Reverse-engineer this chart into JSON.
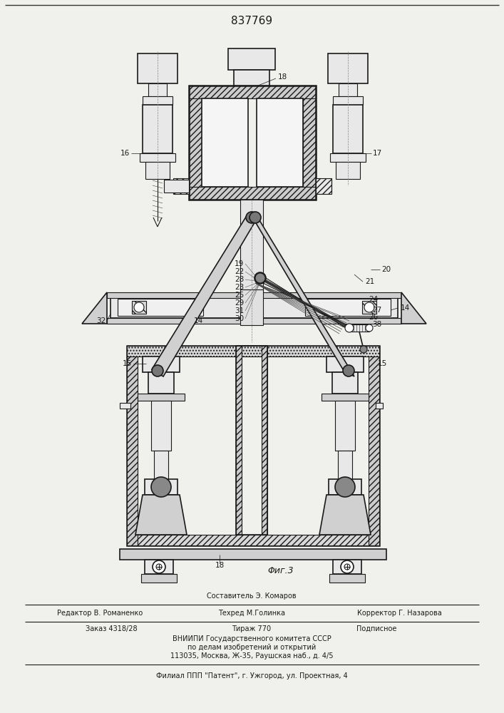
{
  "patent_number": "837769",
  "fig_label": "Φиг.3",
  "bg_color": "#f0f0ec",
  "line_color": "#1a1a1a",
  "hatch_color": "#333333",
  "footer": {
    "sostavitel": "Составитель Э. Комаров",
    "redaktor": "Редактор В. Романенко",
    "tehred": "Техред М.Голинка",
    "korrektor": "Корректор Г. Назарова",
    "zakaz": "Заказ 4318/28",
    "tirazh": "Тираж 770",
    "podpisnoe": "Подписное",
    "vniip1": "ВНИИПИ Государственного комитета СССР",
    "vniip2": "по делам изобретений и открытий",
    "vniip3": "113035, Москва, Ж-35, Раушская наб., д. 4/5",
    "filial": "Филиал ППП \"Патент\", г. Ужгород, ул. Проектная, 4"
  }
}
